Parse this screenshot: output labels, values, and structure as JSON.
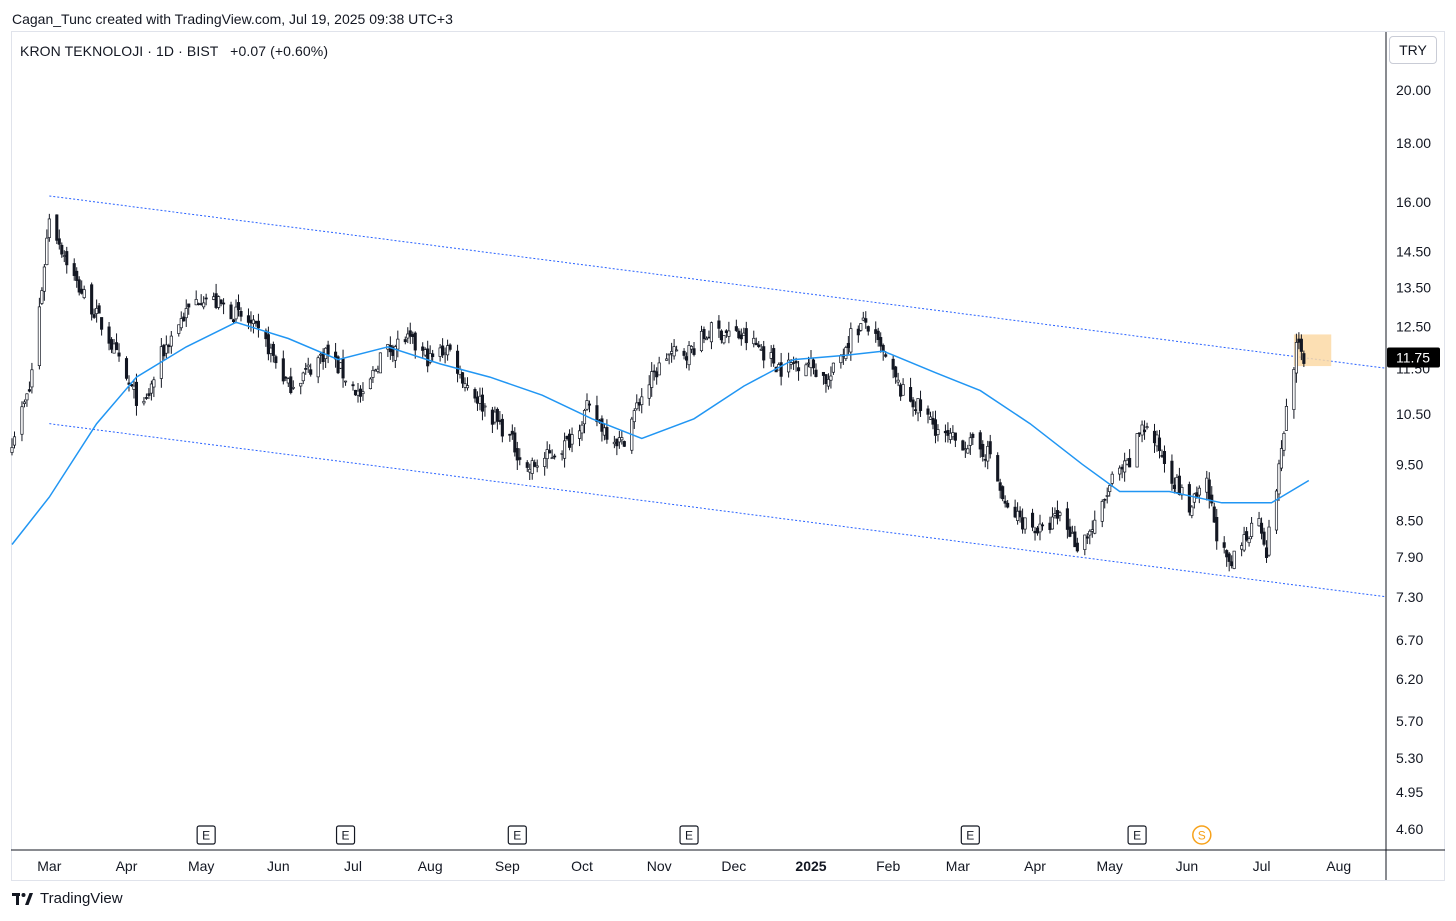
{
  "header": {
    "caption": "Cagan_Tunc created with TradingView.com, Jul 19, 2025 09:38 UTC+3"
  },
  "legend": {
    "symbol": "KRON TEKNOLOJI",
    "interval": "1D",
    "exchange": "BIST",
    "change": "+0.07 (+0.60%)"
  },
  "currency_button": "TRY",
  "footer": {
    "brand": "TradingView",
    "logo_icon": "tradingview-logo-icon"
  },
  "colors": {
    "candle": "#131722",
    "ma_line": "#2196f3",
    "channel_line": "#2962ff",
    "highlight": "#fcd9a6",
    "last_price_bg": "#000000",
    "dividend_badge": "#f7a21b"
  },
  "chart_data": {
    "type": "candlestick",
    "scale": "log",
    "y_ticks": [
      "20.00",
      "18.00",
      "16.00",
      "14.50",
      "13.50",
      "12.50",
      "11.50",
      "10.50",
      "9.50",
      "8.50",
      "7.90",
      "7.30",
      "6.70",
      "6.20",
      "5.70",
      "5.30",
      "4.95",
      "4.60"
    ],
    "x_ticks": [
      "Mar",
      "Apr",
      "May",
      "Jun",
      "Jul",
      "Aug",
      "Sep",
      "Oct",
      "Nov",
      "Dec",
      "2025",
      "Feb",
      "Mar",
      "Apr",
      "May",
      "Jun",
      "Jul",
      "Aug"
    ],
    "x_range": [
      "2024-02-15",
      "2025-08-20"
    ],
    "last_price": "11.75",
    "close_series": [
      [
        "2024-02-15",
        10.0
      ],
      [
        "2024-02-22",
        11.0
      ],
      [
        "2024-02-27",
        13.5
      ],
      [
        "2024-03-01",
        15.6
      ],
      [
        "2024-03-06",
        14.6
      ],
      [
        "2024-03-12",
        13.6
      ],
      [
        "2024-03-18",
        13.0
      ],
      [
        "2024-03-25",
        12.2
      ],
      [
        "2024-04-01",
        11.2
      ],
      [
        "2024-04-08",
        10.6
      ],
      [
        "2024-04-15",
        11.8
      ],
      [
        "2024-04-22",
        12.6
      ],
      [
        "2024-05-01",
        13.3
      ],
      [
        "2024-05-10",
        13.0
      ],
      [
        "2024-05-20",
        12.6
      ],
      [
        "2024-05-28",
        12.0
      ],
      [
        "2024-06-05",
        11.1
      ],
      [
        "2024-06-12",
        11.4
      ],
      [
        "2024-06-20",
        11.9
      ],
      [
        "2024-06-28",
        11.3
      ],
      [
        "2024-07-05",
        10.8
      ],
      [
        "2024-07-12",
        11.8
      ],
      [
        "2024-07-22",
        12.2
      ],
      [
        "2024-08-01",
        11.7
      ],
      [
        "2024-08-08",
        12.0
      ],
      [
        "2024-08-15",
        11.2
      ],
      [
        "2024-08-22",
        10.7
      ],
      [
        "2024-09-01",
        10.1
      ],
      [
        "2024-09-09",
        9.4
      ],
      [
        "2024-09-16",
        9.6
      ],
      [
        "2024-09-25",
        9.9
      ],
      [
        "2024-10-03",
        10.6
      ],
      [
        "2024-10-10",
        10.2
      ],
      [
        "2024-10-17",
        9.9
      ],
      [
        "2024-10-25",
        10.9
      ],
      [
        "2024-11-04",
        11.8
      ],
      [
        "2024-11-13",
        11.9
      ],
      [
        "2024-11-22",
        12.4
      ],
      [
        "2024-12-02",
        12.3
      ],
      [
        "2024-12-11",
        12.0
      ],
      [
        "2024-12-20",
        11.5
      ],
      [
        "2024-12-30",
        11.7
      ],
      [
        "2025-01-08",
        11.2
      ],
      [
        "2025-01-17",
        12.3
      ],
      [
        "2025-01-23",
        12.6
      ],
      [
        "2025-01-30",
        11.8
      ],
      [
        "2025-02-06",
        11.0
      ],
      [
        "2025-02-14",
        10.6
      ],
      [
        "2025-02-24",
        10.0
      ],
      [
        "2025-03-05",
        9.9
      ],
      [
        "2025-03-14",
        9.7
      ],
      [
        "2025-03-20",
        8.7
      ],
      [
        "2025-03-27",
        8.5
      ],
      [
        "2025-04-04",
        8.3
      ],
      [
        "2025-04-11",
        8.6
      ],
      [
        "2025-04-18",
        8.1
      ],
      [
        "2025-04-25",
        8.4
      ],
      [
        "2025-05-02",
        9.2
      ],
      [
        "2025-05-09",
        9.5
      ],
      [
        "2025-05-14",
        10.3
      ],
      [
        "2025-05-20",
        9.9
      ],
      [
        "2025-05-26",
        9.3
      ],
      [
        "2025-06-02",
        8.7
      ],
      [
        "2025-06-09",
        9.1
      ],
      [
        "2025-06-13",
        8.3
      ],
      [
        "2025-06-18",
        7.7
      ],
      [
        "2025-06-24",
        8.2
      ],
      [
        "2025-06-30",
        8.6
      ],
      [
        "2025-07-03",
        8.0
      ],
      [
        "2025-07-08",
        9.4
      ],
      [
        "2025-07-11",
        10.6
      ],
      [
        "2025-07-15",
        12.0
      ],
      [
        "2025-07-18",
        11.75
      ]
    ],
    "moving_average": [
      [
        "2024-02-15",
        8.1
      ],
      [
        "2024-03-01",
        8.9
      ],
      [
        "2024-03-20",
        10.3
      ],
      [
        "2024-04-05",
        11.3
      ],
      [
        "2024-04-25",
        12.0
      ],
      [
        "2024-05-15",
        12.6
      ],
      [
        "2024-06-05",
        12.2
      ],
      [
        "2024-06-25",
        11.7
      ],
      [
        "2024-07-15",
        12.0
      ],
      [
        "2024-08-05",
        11.6
      ],
      [
        "2024-08-25",
        11.3
      ],
      [
        "2024-09-15",
        10.9
      ],
      [
        "2024-10-05",
        10.4
      ],
      [
        "2024-10-25",
        10.0
      ],
      [
        "2024-11-15",
        10.4
      ],
      [
        "2024-12-05",
        11.1
      ],
      [
        "2024-12-25",
        11.7
      ],
      [
        "2025-01-15",
        11.8
      ],
      [
        "2025-01-30",
        11.9
      ],
      [
        "2025-02-20",
        11.4
      ],
      [
        "2025-03-10",
        11.0
      ],
      [
        "2025-03-30",
        10.3
      ],
      [
        "2025-04-20",
        9.5
      ],
      [
        "2025-05-05",
        9.0
      ],
      [
        "2025-05-25",
        9.0
      ],
      [
        "2025-06-15",
        8.8
      ],
      [
        "2025-07-05",
        8.8
      ],
      [
        "2025-07-20",
        9.2
      ]
    ],
    "channel_upper": [
      [
        "2024-03-01",
        16.2
      ],
      [
        "2025-08-20",
        11.5
      ]
    ],
    "channel_lower": [
      [
        "2024-03-01",
        10.3
      ],
      [
        "2025-08-20",
        7.3
      ]
    ],
    "highlight_box": {
      "from": "2025-07-14",
      "to": "2025-07-29",
      "low": 11.55,
      "high": 12.3
    },
    "event_markers": [
      {
        "date": "2024-05-03",
        "label": "E"
      },
      {
        "date": "2024-06-28",
        "label": "E"
      },
      {
        "date": "2024-09-05",
        "label": "E"
      },
      {
        "date": "2024-11-13",
        "label": "E"
      },
      {
        "date": "2025-03-06",
        "label": "E"
      },
      {
        "date": "2025-05-12",
        "label": "E"
      },
      {
        "date": "2025-06-07",
        "label": "S"
      }
    ]
  }
}
